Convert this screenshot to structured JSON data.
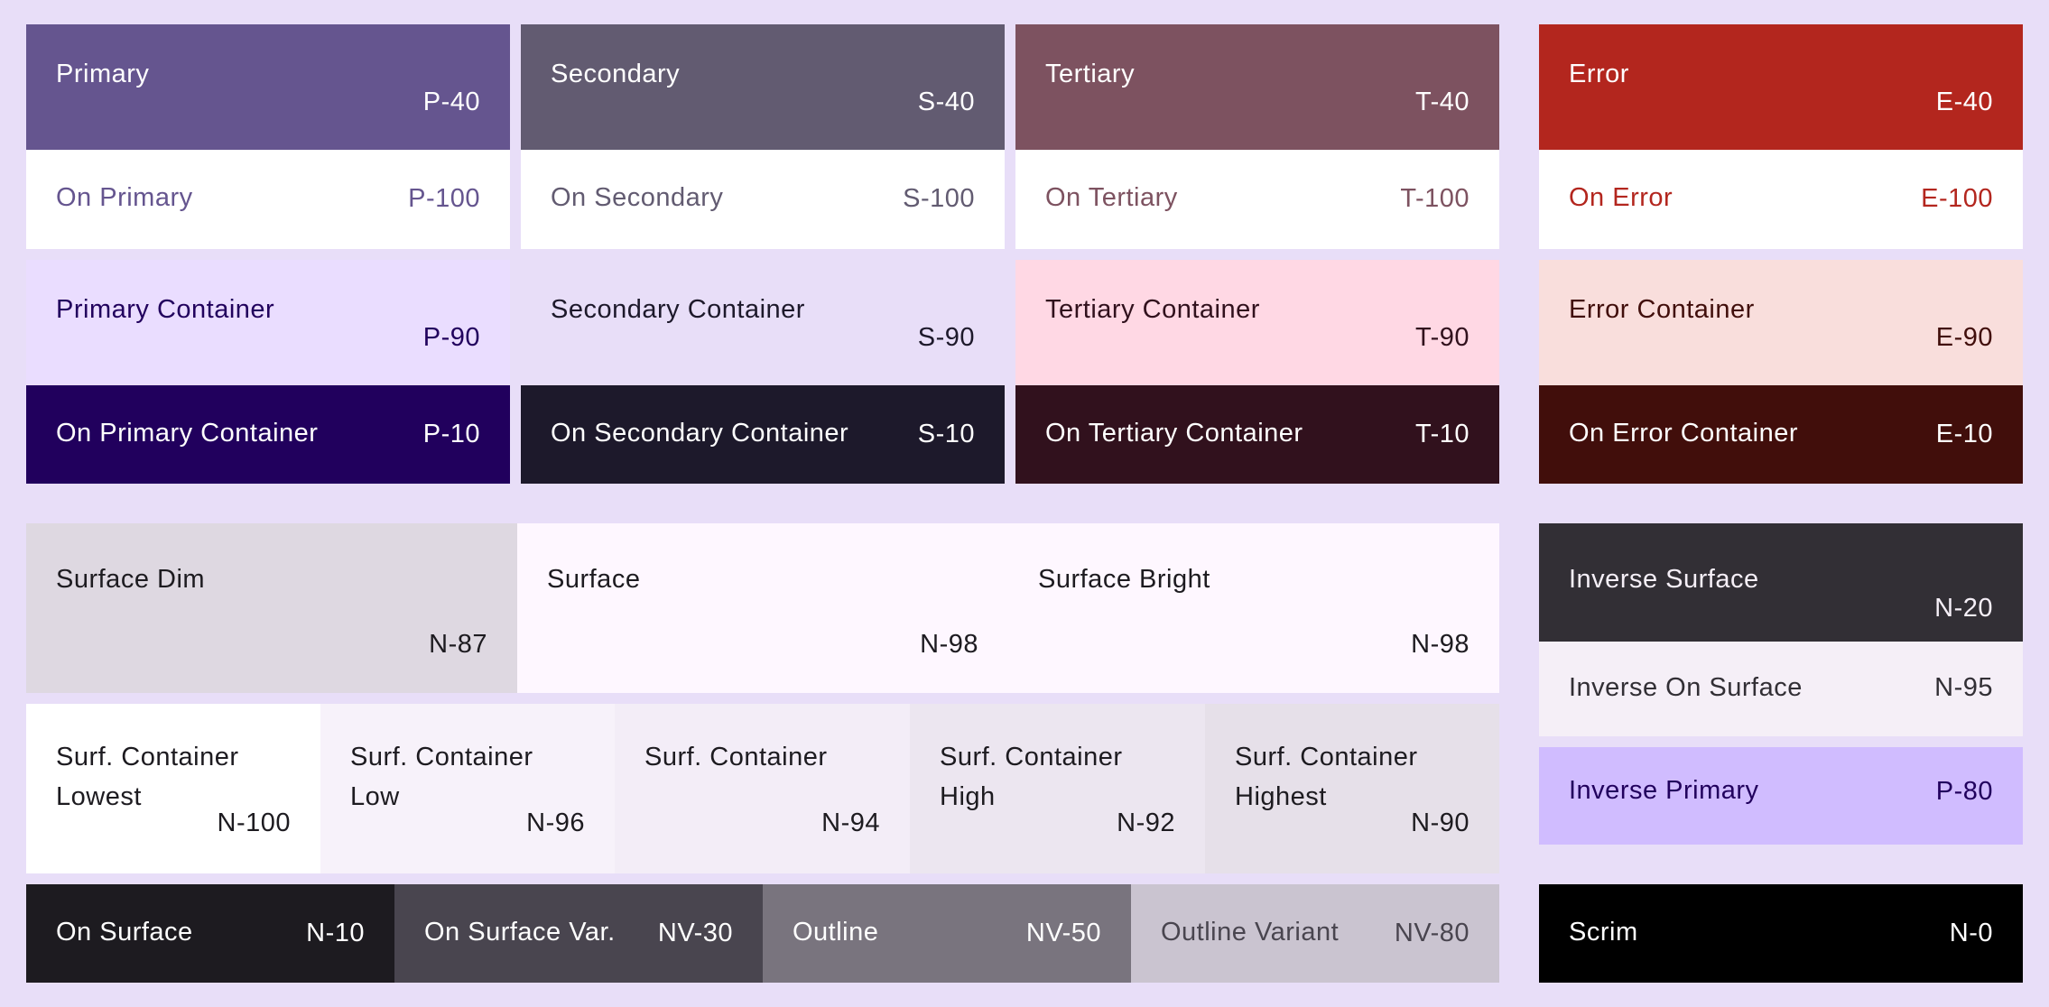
{
  "colors": {
    "background": "#E8DEF8",
    "primary": "#65558F",
    "secondary": "#625B71",
    "tertiary": "#7D5260",
    "error": "#B3261E",
    "primary_container": "#EADDFF",
    "secondary_container": "#E8DEF8",
    "tertiary_container": "#FFD8E4",
    "error_container": "#F9DEDC",
    "on_primary_container": "#21005D",
    "on_secondary_container": "#1D192B",
    "on_tertiary_container": "#31111D",
    "on_error_container": "#410E0B",
    "surface_dim": "#DED8E1",
    "surface": "#FEF7FF",
    "inverse_surface": "#322F35",
    "inverse_on_surface": "#F5EFF7",
    "inverse_primary": "#D0BCFF",
    "scrim": "#000000",
    "on_surface": "#1D1B20",
    "on_surface_variant": "#49454F",
    "outline": "#79747E",
    "outline_variant": "#CAC4D0"
  },
  "key_colors": [
    {
      "id": "primary",
      "label": "Primary",
      "tone": "P-40",
      "on_label": "On Primary",
      "on_tone": "P-100",
      "container_label": "Primary Container",
      "container_tone": "P-90",
      "on_container_label": "On Primary Container",
      "on_container_tone": "P-10"
    },
    {
      "id": "secondary",
      "label": "Secondary",
      "tone": "S-40",
      "on_label": "On Secondary",
      "on_tone": "S-100",
      "container_label": "Secondary Container",
      "container_tone": "S-90",
      "on_container_label": "On Secondary Container",
      "on_container_tone": "S-10"
    },
    {
      "id": "tertiary",
      "label": "Tertiary",
      "tone": "T-40",
      "on_label": "On Tertiary",
      "on_tone": "T-100",
      "container_label": "Tertiary Container",
      "container_tone": "T-90",
      "on_container_label": "On Tertiary Container",
      "on_container_tone": "T-10"
    },
    {
      "id": "error",
      "label": "Error",
      "tone": "E-40",
      "on_label": "On Error",
      "on_tone": "E-100",
      "container_label": "Error Container",
      "container_tone": "E-90",
      "on_container_label": "On Error Container",
      "on_container_tone": "E-10"
    }
  ],
  "surfaces": [
    {
      "label": "Surface Dim",
      "tone": "N-87"
    },
    {
      "label": "Surface",
      "tone": "N-98"
    },
    {
      "label": "Surface Bright",
      "tone": "N-98"
    }
  ],
  "surface_containers": [
    {
      "label": "Surf. Container Lowest",
      "tone": "N-100",
      "color": "#FFFFFF"
    },
    {
      "label": "Surf. Container Low",
      "tone": "N-96",
      "color": "#F7F2FA"
    },
    {
      "label": "Surf. Container",
      "tone": "N-94",
      "color": "#F3EDF7"
    },
    {
      "label": "Surf. Container High",
      "tone": "N-92",
      "color": "#ECE6F0"
    },
    {
      "label": "Surf. Container Highest",
      "tone": "N-90",
      "color": "#E6E0E9"
    }
  ],
  "on_surfaces": [
    {
      "label": "On Surface",
      "tone": "N-10"
    },
    {
      "label": "On Surface Var.",
      "tone": "NV-30"
    },
    {
      "label": "Outline",
      "tone": "NV-50"
    },
    {
      "label": "Outline Variant",
      "tone": "NV-80"
    }
  ],
  "inverse": [
    {
      "label": "Inverse Surface",
      "tone": "N-20"
    },
    {
      "label": "Inverse On Surface",
      "tone": "N-95"
    },
    {
      "label": "Inverse Primary",
      "tone": "P-80"
    }
  ],
  "scrim": {
    "label": "Scrim",
    "tone": "N-0"
  }
}
